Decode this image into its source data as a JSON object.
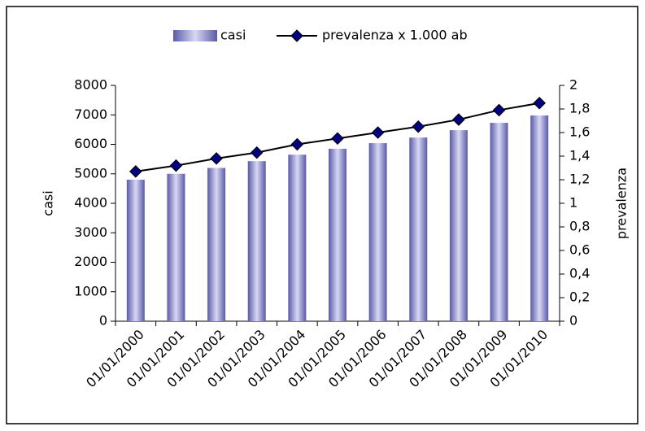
{
  "chart_data": {
    "type": "bar-line",
    "categories": [
      "01/01/2000",
      "01/01/2001",
      "01/01/2002",
      "01/01/2003",
      "01/01/2004",
      "01/01/2005",
      "01/01/2006",
      "01/01/2007",
      "01/01/2008",
      "01/01/2009",
      "01/01/2010"
    ],
    "series": [
      {
        "name": "casi",
        "type": "bar",
        "color": "#5a5aa8",
        "values": [
          4800,
          5000,
          5200,
          5430,
          5650,
          5850,
          6040,
          6230,
          6480,
          6730,
          6980
        ]
      },
      {
        "name": "prevalenza x 1.000 ab",
        "type": "line",
        "axis": "y2",
        "color": "#000080",
        "values": [
          1.27,
          1.32,
          1.38,
          1.43,
          1.5,
          1.55,
          1.6,
          1.65,
          1.71,
          1.79,
          1.85
        ]
      }
    ],
    "ylabel": "casi",
    "y2label": "prevalenza",
    "ylim": [
      0,
      8000
    ],
    "yticks": [
      0,
      1000,
      2000,
      3000,
      4000,
      5000,
      6000,
      7000,
      8000
    ],
    "y2lim": [
      0,
      2
    ],
    "y2ticks": [
      0,
      {
        "value": 0.2,
        "label": "0,2"
      },
      {
        "value": 0.4,
        "label": "0,4"
      },
      {
        "value": 0.6,
        "label": "0,6"
      },
      {
        "value": 0.8,
        "label": "0,8"
      },
      1,
      {
        "value": 1.2,
        "label": "1,2"
      },
      {
        "value": 1.4,
        "label": "1,4"
      },
      {
        "value": 1.6,
        "label": "1,6"
      },
      {
        "value": 1.8,
        "label": "1,8"
      },
      2
    ],
    "legend": "top"
  }
}
